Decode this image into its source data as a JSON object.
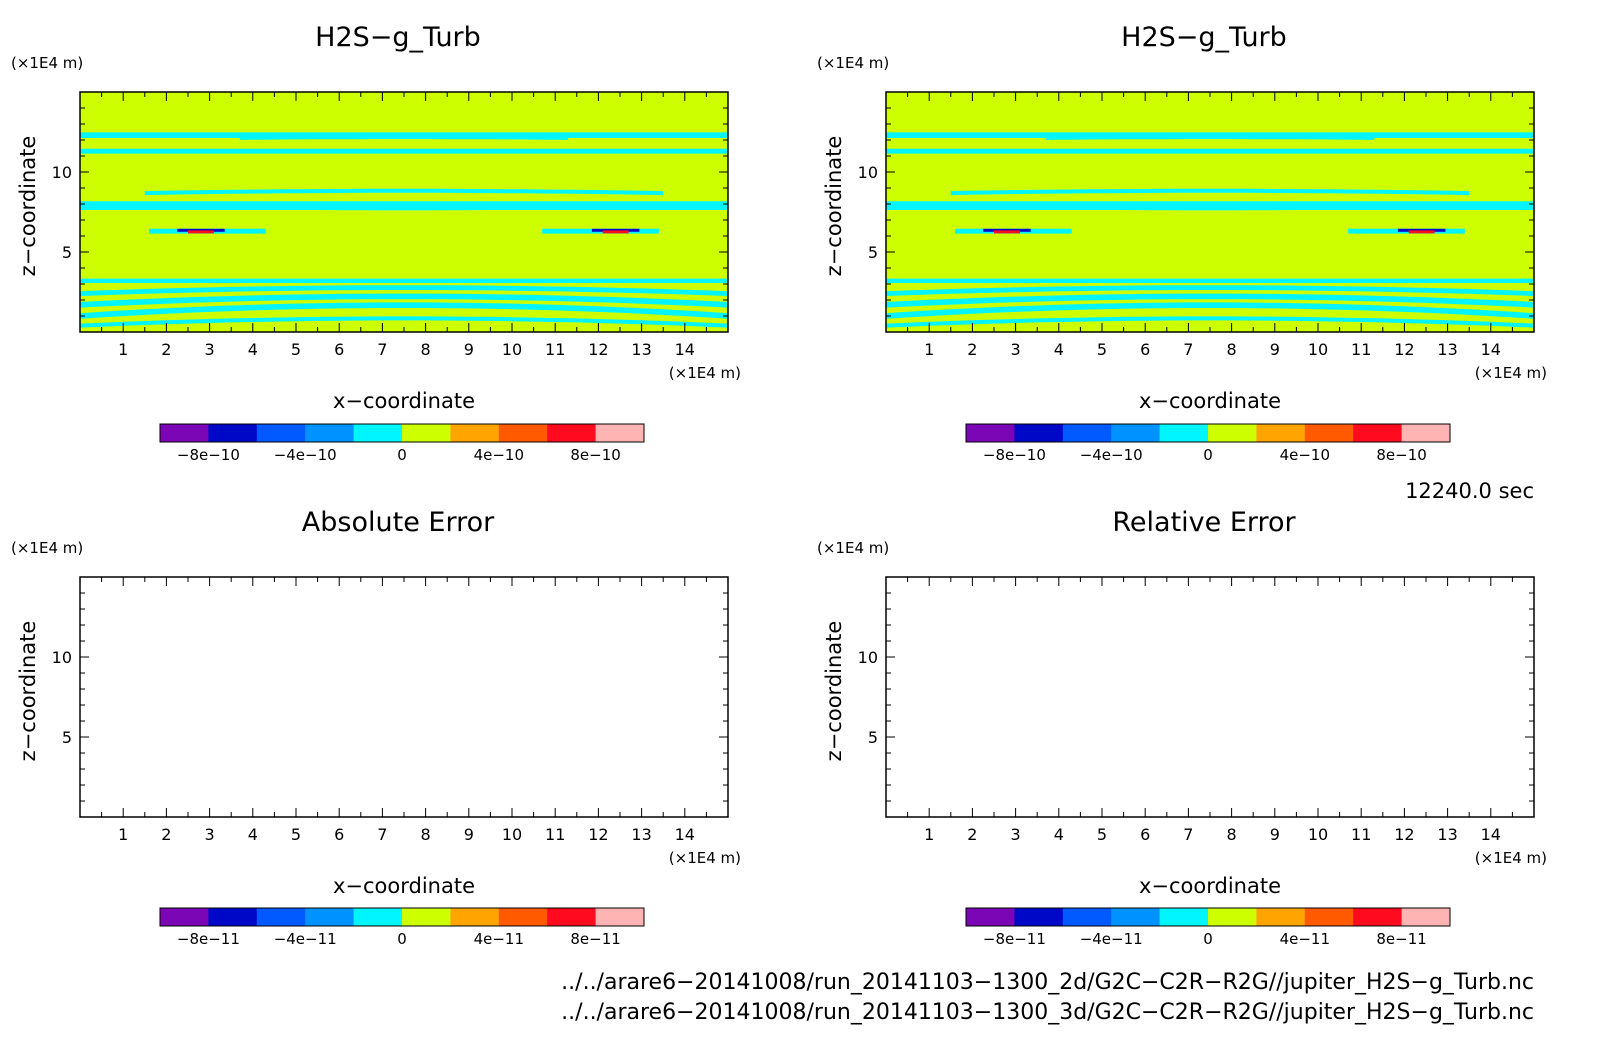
{
  "colors": {
    "palette": [
      "#7b06b6",
      "#0008c8",
      "#005aff",
      "#0093ff",
      "#00f5ff",
      "#cdff00",
      "#ffa400",
      "#ff5a00",
      "#ff0a1e",
      "#ffb4b4"
    ],
    "background_field": "#cdff00",
    "band": "#00f5ff",
    "frame": "#000000"
  },
  "chart_data": [
    {
      "type": "heatmap",
      "title": "H2S−g_Turb",
      "xlabel": "x−coordinate",
      "ylabel": "z−coordinate",
      "x_unit": "(×1E4 m)",
      "y_unit": "(×1E4 m)",
      "xlim": [
        0,
        15
      ],
      "ylim": [
        0,
        15
      ],
      "x_ticks": [
        1,
        2,
        3,
        4,
        5,
        6,
        7,
        8,
        9,
        10,
        11,
        12,
        13,
        14
      ],
      "y_ticks": [
        5,
        10
      ],
      "colorbar_labels": [
        "−8e−10",
        "−4e−10",
        "0",
        "4e−10",
        "8e−10"
      ],
      "filled": true
    },
    {
      "type": "heatmap",
      "title": "H2S−g_Turb",
      "xlabel": "x−coordinate",
      "ylabel": "z−coordinate",
      "x_unit": "(×1E4 m)",
      "y_unit": "(×1E4 m)",
      "xlim": [
        0,
        15
      ],
      "ylim": [
        0,
        15
      ],
      "x_ticks": [
        1,
        2,
        3,
        4,
        5,
        6,
        7,
        8,
        9,
        10,
        11,
        12,
        13,
        14
      ],
      "y_ticks": [
        5,
        10
      ],
      "colorbar_labels": [
        "−8e−10",
        "−4e−10",
        "0",
        "4e−10",
        "8e−10"
      ],
      "filled": true
    },
    {
      "type": "heatmap",
      "title": "Absolute Error",
      "xlabel": "x−coordinate",
      "ylabel": "z−coordinate",
      "x_unit": "(×1E4 m)",
      "y_unit": "(×1E4 m)",
      "xlim": [
        0,
        15
      ],
      "ylim": [
        0,
        15
      ],
      "x_ticks": [
        1,
        2,
        3,
        4,
        5,
        6,
        7,
        8,
        9,
        10,
        11,
        12,
        13,
        14
      ],
      "y_ticks": [
        5,
        10
      ],
      "colorbar_labels": [
        "−8e−11",
        "−4e−11",
        "0",
        "4e−11",
        "8e−11"
      ],
      "filled": false
    },
    {
      "type": "heatmap",
      "title": "Relative Error",
      "xlabel": "x−coordinate",
      "ylabel": "z−coordinate",
      "x_unit": "(×1E4 m)",
      "y_unit": "(×1E4 m)",
      "xlim": [
        0,
        15
      ],
      "ylim": [
        0,
        15
      ],
      "x_ticks": [
        1,
        2,
        3,
        4,
        5,
        6,
        7,
        8,
        9,
        10,
        11,
        12,
        13,
        14
      ],
      "y_ticks": [
        5,
        10
      ],
      "colorbar_labels": [
        "−8e−11",
        "−4e−11",
        "0",
        "4e−11",
        "8e−11"
      ],
      "filled": false
    }
  ],
  "time_label": "12240.0 sec",
  "file_paths": [
    "../../arare6−20141008/run_20141103−1300_2d/G2C−C2R−R2G//jupiter_H2S−g_Turb.nc",
    "../../arare6−20141008/run_20141103−1300_3d/G2C−C2R−R2G//jupiter_H2S−g_Turb.nc"
  ]
}
